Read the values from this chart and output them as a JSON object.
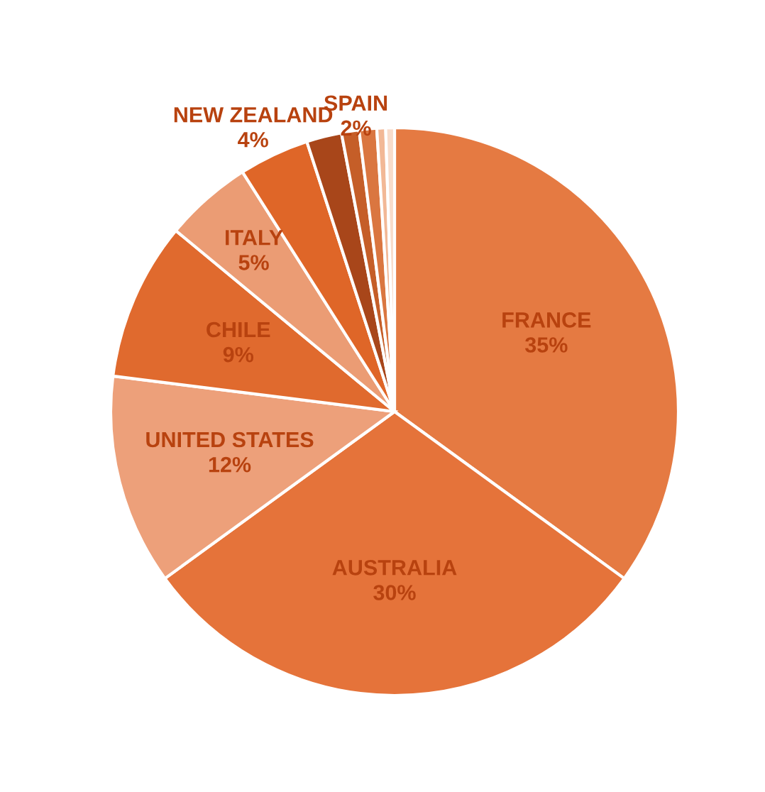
{
  "chart_data": {
    "type": "pie",
    "categories": [
      "FRANCE",
      "AUSTRALIA",
      "UNITED STATES",
      "CHILE",
      "ITALY",
      "NEW ZEALAND",
      "SPAIN",
      null,
      null,
      null,
      null
    ],
    "values": [
      35,
      30,
      12,
      9,
      5,
      4,
      2,
      1,
      1,
      0.5,
      0.5
    ],
    "value_labels": [
      "35%",
      "30%",
      "12%",
      "9%",
      "5%",
      "4%",
      "2%",
      null,
      null,
      null,
      null
    ],
    "colors": [
      "#e57a42",
      "#e5733a",
      "#eda07a",
      "#e06a2e",
      "#eb9c74",
      "#df6628",
      "#a8461a",
      "#c55e28",
      "#da7640",
      "#f2b896",
      "#f8dccb"
    ]
  }
}
